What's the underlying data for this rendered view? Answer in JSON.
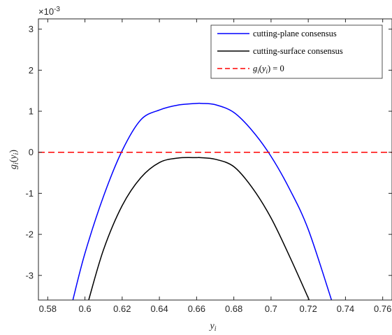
{
  "chart_data": {
    "type": "line",
    "xlabel_base": "y",
    "xlabel_sub": "i",
    "ylabel": {
      "g": "g",
      "sub1": "i",
      "open": "(",
      "y": "y",
      "sub2": "i",
      "close": ")"
    },
    "y_exponent_base": "×10",
    "y_exponent_power": "-3",
    "xlim": [
      0.575,
      0.765
    ],
    "ylim": [
      -3.6,
      3.25
    ],
    "x_ticks": [
      0.58,
      0.6,
      0.62,
      0.64,
      0.66,
      0.68,
      0.7,
      0.72,
      0.74,
      0.76
    ],
    "x_tick_labels": [
      "0.58",
      "0.6",
      "0.62",
      "0.64",
      "0.66",
      "0.68",
      "0.7",
      "0.72",
      "0.74",
      "0.76"
    ],
    "y_ticks": [
      -3,
      -2,
      -1,
      0,
      1,
      2,
      3
    ],
    "y_tick_labels": [
      "-3",
      "-2",
      "-1",
      "0",
      "1",
      "2",
      "3"
    ],
    "grid": false,
    "legend_position": "top-right",
    "series": [
      {
        "name": "cutting-plane consensus",
        "color": "#0000ff",
        "style": "solid",
        "x": [
          0.5935,
          0.6,
          0.61,
          0.62,
          0.63,
          0.64,
          0.65,
          0.66,
          0.6628,
          0.67,
          0.68,
          0.69,
          0.7,
          0.71,
          0.72,
          0.7325
        ],
        "y": [
          -3.6,
          -2.46,
          -1.07,
          0.04,
          0.79,
          1.03,
          1.15,
          1.19,
          1.19,
          1.16,
          0.97,
          0.52,
          -0.1,
          -0.9,
          -1.88,
          -3.6
        ]
      },
      {
        "name": "cutting-surface consensus",
        "color": "#000000",
        "style": "solid",
        "x": [
          0.602,
          0.61,
          0.62,
          0.63,
          0.64,
          0.65,
          0.66,
          0.662,
          0.67,
          0.68,
          0.69,
          0.7,
          0.71,
          0.7205
        ],
        "y": [
          -3.6,
          -2.37,
          -1.3,
          -0.62,
          -0.25,
          -0.14,
          -0.13,
          -0.13,
          -0.17,
          -0.35,
          -0.87,
          -1.6,
          -2.54,
          -3.6
        ]
      },
      {
        "name": "g_i(y_i) = 0",
        "color": "#ff0000",
        "style": "dashed",
        "x": [
          0.575,
          0.765
        ],
        "y": [
          0,
          0
        ]
      }
    ],
    "legend": [
      {
        "label": "cutting-plane consensus",
        "color": "#0000ff",
        "style": "solid"
      },
      {
        "label": "cutting-surface consensus",
        "color": "#000000",
        "style": "solid"
      },
      {
        "label_parts": {
          "g": "g",
          "sub1": "i",
          "open": "(",
          "y": "y",
          "sub2": "i",
          "rest": ") = 0"
        },
        "color": "#ff0000",
        "style": "dashed"
      }
    ]
  }
}
